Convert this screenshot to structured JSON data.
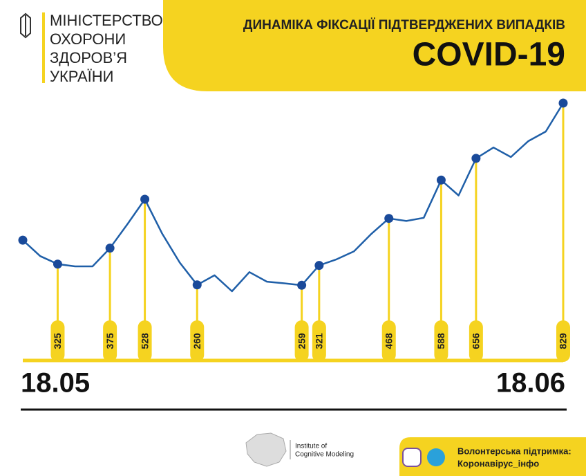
{
  "header": {
    "ministry": [
      "МІНІСТЕРСТВО",
      "ОХОРОНИ",
      "ЗДОРОВ’Я",
      "УКРАЇНИ"
    ]
  },
  "chart_data": {
    "type": "line",
    "title": "ДИНАМІКА ФІКСАЦІЇ ПІДТВЕРДЖЕНИХ ВИПАДКІВ",
    "subtitle": "COVID-19",
    "categories": [
      "18.05",
      null,
      null,
      null,
      null,
      null,
      null,
      null,
      null,
      null,
      null,
      null,
      null,
      null,
      null,
      null,
      null,
      null,
      null,
      null,
      null,
      null,
      null,
      null,
      null,
      null,
      null,
      null,
      null,
      null,
      null,
      "18.06"
    ],
    "values": [
      400,
      350,
      325,
      318,
      318,
      375,
      450,
      528,
      420,
      330,
      260,
      290,
      240,
      300,
      270,
      265,
      259,
      321,
      340,
      365,
      420,
      468,
      460,
      470,
      588,
      540,
      656,
      690,
      660,
      710,
      740,
      829
    ],
    "value_labels": [
      null,
      null,
      "325",
      null,
      null,
      "375",
      null,
      "528",
      null,
      null,
      "260",
      null,
      null,
      null,
      null,
      null,
      "259",
      "321",
      null,
      null,
      null,
      "468",
      null,
      null,
      "588",
      null,
      "656",
      null,
      null,
      null,
      null,
      "829"
    ],
    "line_color": "#1f5fa8",
    "marker_color": "#1a4a9a",
    "stem_color": "#f5d320"
  },
  "footer": {
    "institute": [
      "Institute of",
      "Cognitive Modeling"
    ],
    "support": [
      "Волонтерська підтримка:",
      "Коронавірус_інфо"
    ]
  }
}
